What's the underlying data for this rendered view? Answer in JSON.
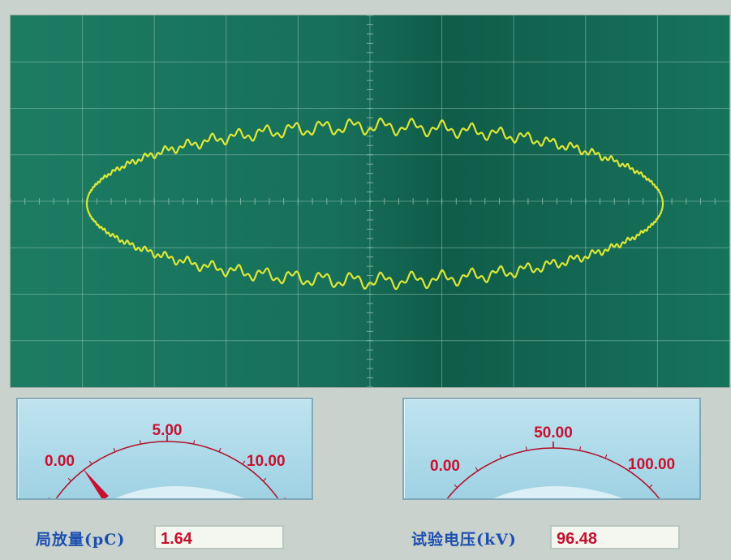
{
  "oscilloscope": {
    "trace_color": "#e8ee33",
    "grid_color": "#8fc2b0",
    "background_color": "#17705a"
  },
  "pd_meter": {
    "min_label": "0.00",
    "mid_label": "5.00",
    "max_label": "10.00",
    "min": 0,
    "max": 10,
    "value": 1.64,
    "label": "局放量(pC)",
    "readout": "1.64"
  },
  "voltage_meter": {
    "min_label": "0.00",
    "mid_label": "50.00",
    "max_label": "100.00",
    "min": 0,
    "max": 100,
    "value": 96.48,
    "label": "试验电压(kV)",
    "readout": "96.48"
  },
  "colors": {
    "scale_text": "#c8102e",
    "needle": "#c8102e",
    "label_text": "#1d4fb0"
  }
}
